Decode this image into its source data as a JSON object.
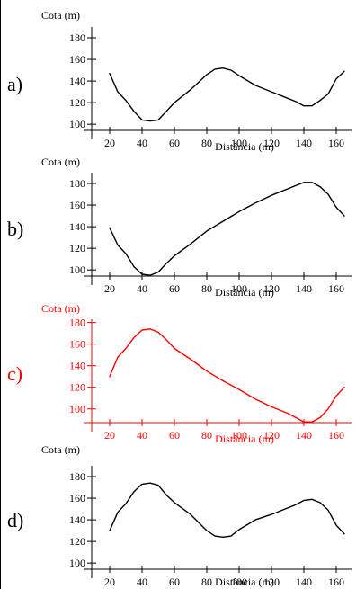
{
  "chart_data": [
    {
      "type": "line",
      "option_label": "a)",
      "color": "#000000",
      "ylabel": "Cota (m)",
      "xlabel": "Distância (m)",
      "xlim": [
        10,
        167
      ],
      "ylim": [
        86,
        190
      ],
      "xticks": [
        20,
        40,
        60,
        80,
        100,
        120,
        140,
        160
      ],
      "yticks": [
        100,
        120,
        140,
        160,
        180
      ],
      "series": [
        {
          "x": [
            20,
            25,
            30,
            35,
            40,
            45,
            50,
            55,
            60,
            70,
            80,
            85,
            90,
            95,
            100,
            110,
            120,
            130,
            135,
            140,
            145,
            150,
            155,
            160,
            165
          ],
          "y": [
            147,
            130,
            122,
            112,
            104,
            103,
            104,
            112,
            120,
            132,
            146,
            151,
            152,
            150,
            145,
            136,
            130,
            124,
            121,
            117,
            117,
            122,
            128,
            142,
            149
          ]
        }
      ]
    },
    {
      "type": "line",
      "option_label": "b)",
      "color": "#000000",
      "ylabel": "Cota (m)",
      "xlabel": "Distância (m)",
      "xlim": [
        10,
        167
      ],
      "ylim": [
        86,
        190
      ],
      "xticks": [
        20,
        40,
        60,
        80,
        100,
        120,
        140,
        160
      ],
      "yticks": [
        100,
        120,
        140,
        160,
        180
      ],
      "series": [
        {
          "x": [
            20,
            25,
            30,
            35,
            40,
            45,
            50,
            55,
            60,
            70,
            80,
            90,
            100,
            110,
            120,
            130,
            135,
            140,
            145,
            150,
            155,
            160,
            165
          ],
          "y": [
            139,
            123,
            115,
            103,
            96,
            95,
            98,
            106,
            113,
            124,
            136,
            145,
            154,
            162,
            169,
            175,
            178,
            181,
            181,
            177,
            170,
            158,
            150
          ]
        }
      ]
    },
    {
      "type": "line",
      "option_label": "c)",
      "color": "#ff0000",
      "ylabel": "Cota (m)",
      "xlabel": "Distância (m)",
      "xlim": [
        10,
        167
      ],
      "ylim": [
        79,
        183
      ],
      "xticks": [
        20,
        40,
        60,
        80,
        100,
        120,
        140,
        160
      ],
      "yticks": [
        100,
        120,
        140,
        160,
        180
      ],
      "series": [
        {
          "x": [
            20,
            25,
            30,
            35,
            40,
            45,
            50,
            55,
            60,
            70,
            80,
            90,
            100,
            110,
            120,
            130,
            135,
            140,
            145,
            150,
            155,
            160,
            165
          ],
          "y": [
            130,
            148,
            156,
            166,
            173,
            174,
            171,
            164,
            156,
            146,
            135,
            126,
            118,
            109,
            102,
            96,
            92,
            88,
            88,
            92,
            100,
            112,
            120
          ]
        }
      ]
    },
    {
      "type": "line",
      "option_label": "d)",
      "color": "#000000",
      "ylabel": "Cota (m)",
      "xlabel": "Distância (m)",
      "xlim": [
        10,
        167
      ],
      "ylim": [
        86,
        190
      ],
      "xticks": [
        20,
        40,
        60,
        80,
        100,
        120,
        140,
        160
      ],
      "yticks": [
        100,
        120,
        140,
        160,
        180
      ],
      "series": [
        {
          "x": [
            20,
            25,
            30,
            35,
            40,
            45,
            50,
            55,
            60,
            70,
            80,
            85,
            90,
            95,
            100,
            110,
            120,
            130,
            135,
            140,
            145,
            150,
            155,
            160,
            165
          ],
          "y": [
            130,
            147,
            155,
            166,
            173,
            174,
            172,
            163,
            156,
            145,
            130,
            125,
            124,
            125,
            131,
            140,
            145,
            151,
            154,
            158,
            159,
            156,
            149,
            135,
            127
          ]
        }
      ]
    }
  ]
}
